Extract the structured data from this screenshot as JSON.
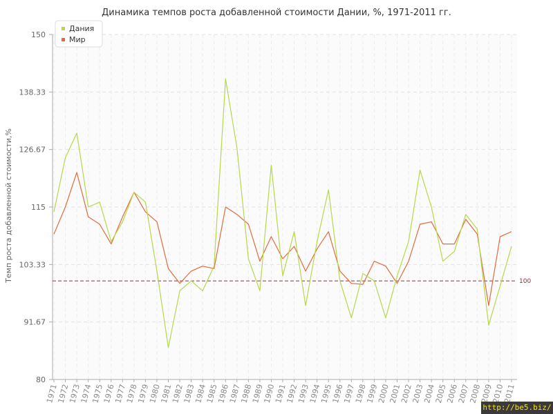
{
  "chart_data": {
    "type": "line",
    "title": "Динамика темпов роста добавленной стоимости Дании, %, 1971-2011 гг.",
    "ylabel": "Темп роста добавленной стоимости,%",
    "xlabel": "",
    "ylim": [
      80,
      150
    ],
    "yticks": [
      "80",
      "91.67",
      "103.33",
      "115",
      "126.67",
      "138.33",
      "150"
    ],
    "x": [
      "1971",
      "1972",
      "1973",
      "1974",
      "1975",
      "1976",
      "1977",
      "1978",
      "1979",
      "1980",
      "1981",
      "1982",
      "1983",
      "1984",
      "1985",
      "1986",
      "1987",
      "1988",
      "1989",
      "1990",
      "1991",
      "1992",
      "1993",
      "1994",
      "1995",
      "1996",
      "1997",
      "1998",
      "1999",
      "2000",
      "2001",
      "2002",
      "2003",
      "2004",
      "2005",
      "2006",
      "2007",
      "2008",
      "2009",
      "2010",
      "2011"
    ],
    "series": [
      {
        "name": "Дания",
        "color": "#b5d84a",
        "values": [
          114,
          125,
          130,
          115,
          116,
          108,
          112,
          118,
          116,
          102,
          86.5,
          98,
          100,
          98,
          103,
          141,
          127,
          104.5,
          98,
          123.5,
          101,
          110,
          95,
          108,
          118.5,
          100,
          92.5,
          101.5,
          100,
          92.5,
          101,
          108,
          122.5,
          115,
          104,
          106,
          113.5,
          110.5,
          91,
          99,
          107
        ]
      },
      {
        "name": "Мир",
        "color": "#e36a3a",
        "values": [
          109.5,
          115,
          122,
          113,
          111.5,
          107.5,
          113,
          118,
          114,
          112,
          102.5,
          99.5,
          102,
          103,
          102.5,
          115,
          113.5,
          111.5,
          104,
          109,
          104.5,
          107,
          102,
          106.5,
          110,
          102,
          99.5,
          99.3,
          104,
          103,
          99.5,
          104,
          111.5,
          112,
          107.5,
          107.5,
          112.5,
          109.5,
          95,
          109,
          110
        ]
      }
    ],
    "reference_line": {
      "value": 100,
      "label": "100",
      "color": "#8b2e3b"
    },
    "legend_position": "top-left",
    "grid": true
  },
  "watermark": "http://be5.biz/"
}
